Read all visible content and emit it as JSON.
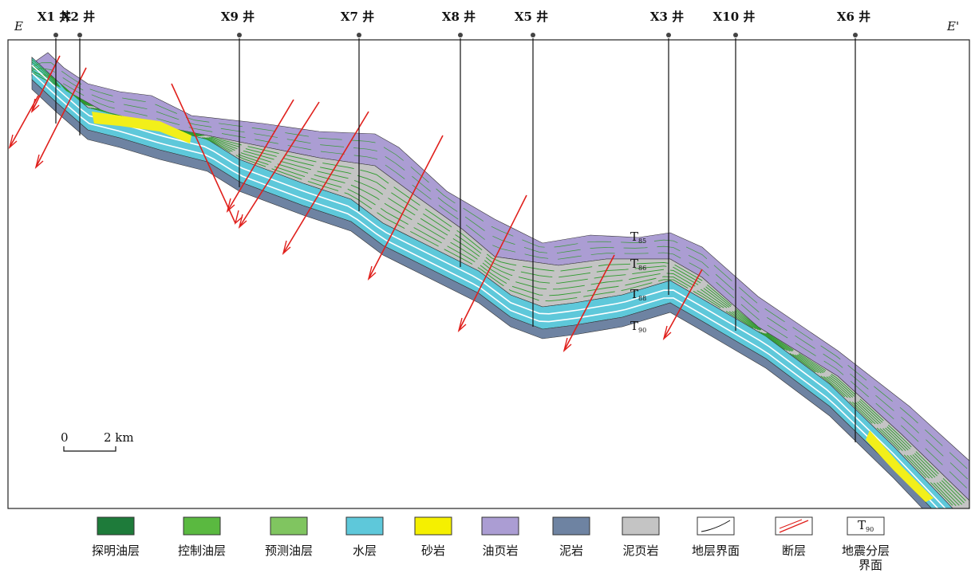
{
  "section": {
    "left": "E",
    "right": "E'"
  },
  "wells": [
    "X1 井",
    "X2 井",
    "X9 井",
    "X7 井",
    "X8 井",
    "X5 井",
    "X3 井",
    "X10 井",
    "X6 井"
  ],
  "horizons": [
    {
      "letter": "T",
      "sub": "85"
    },
    {
      "letter": "T",
      "sub": "86"
    },
    {
      "letter": "T",
      "sub": "88"
    },
    {
      "letter": "T",
      "sub": "90"
    }
  ],
  "scale_bar": {
    "start": "0",
    "end": "2 km"
  },
  "legend": [
    {
      "label": "探明油层"
    },
    {
      "label": "控制油层"
    },
    {
      "label": "预测油层"
    },
    {
      "label": "水层"
    },
    {
      "label": "砂岩"
    },
    {
      "label": "油页岩"
    },
    {
      "label": "泥岩"
    },
    {
      "label": "泥页岩"
    },
    {
      "label": "地层界面"
    },
    {
      "label": "断层"
    },
    {
      "label_lines": [
        "地震分层",
        "界面"
      ]
    }
  ],
  "legend_symbol": {
    "letter": "T",
    "sub": "90"
  }
}
